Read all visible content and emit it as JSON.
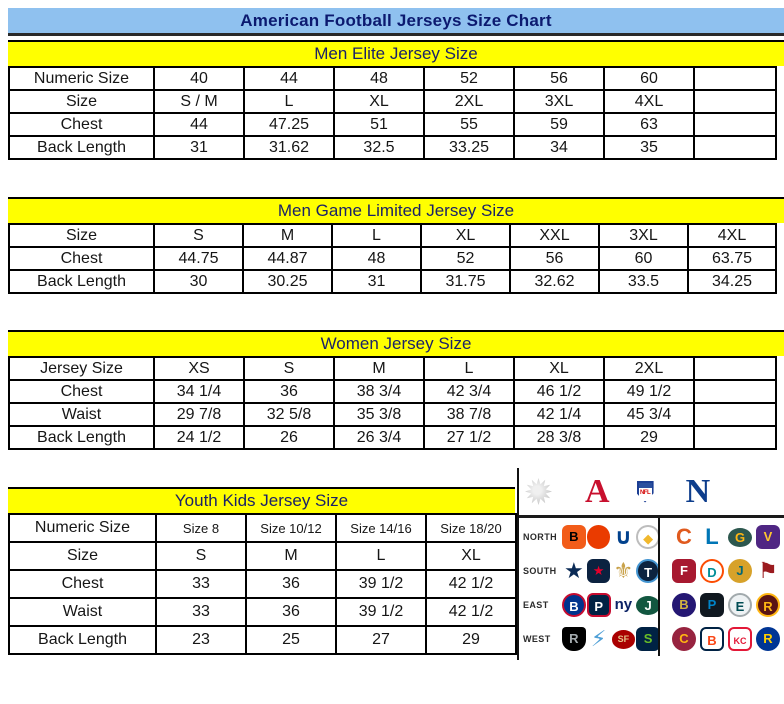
{
  "title_bar": {
    "title": "American Football Jerseys Size Chart"
  },
  "colors": {
    "title_bg": "#8fc1ef",
    "band_bg": "#ffff00",
    "heading_text": "#0c1a70",
    "table_text": "#161616",
    "afc_red": "#c8102e",
    "nfc_blue": "#0d3d8c"
  },
  "tables": {
    "men_elite": {
      "header": "Men Elite Jersey Size",
      "rows": [
        [
          "Numeric Size",
          "40",
          "44",
          "48",
          "52",
          "56",
          "60",
          ""
        ],
        [
          "Size",
          "S / M",
          "L",
          "XL",
          "2XL",
          "3XL",
          "4XL",
          ""
        ],
        [
          "Chest",
          "44",
          "47.25",
          "51",
          "55",
          "59",
          "63",
          ""
        ],
        [
          "Back Length",
          "31",
          "31.62",
          "32.5",
          "33.25",
          "34",
          "35",
          ""
        ]
      ]
    },
    "men_game": {
      "header": "Men Game Limited Jersey Size",
      "rows": [
        [
          "Size",
          "S",
          "M",
          "L",
          "XL",
          "XXL",
          "3XL",
          "4XL"
        ],
        [
          "Chest",
          "44.75",
          "44.87",
          "48",
          "52",
          "56",
          "60",
          "63.75"
        ],
        [
          "Back Length",
          "30",
          "30.25",
          "31",
          "31.75",
          "32.62",
          "33.5",
          "34.25"
        ]
      ]
    },
    "women": {
      "header": "Women Jersey Size",
      "rows": [
        [
          "Jersey Size",
          "XS",
          "S",
          "M",
          "L",
          "XL",
          "2XL",
          ""
        ],
        [
          "Chest",
          "34 1/4",
          "36",
          "38 3/4",
          "42 3/4",
          "46 1/2",
          "49 1/2",
          ""
        ],
        [
          "Waist",
          "29 7/8",
          "32 5/8",
          "35 3/8",
          "38 7/8",
          "42 1/4",
          "45 3/4",
          ""
        ],
        [
          "Back Length",
          "24 1/2",
          "26",
          "26 3/4",
          "27 1/2",
          "28 3/8",
          "29",
          ""
        ]
      ]
    },
    "youth": {
      "header": "Youth Kids Jersey Size",
      "rows": [
        [
          "Numeric Size",
          "Size 8",
          "Size 10/12",
          "Size 14/16",
          "Size 18/20"
        ],
        [
          "Size",
          "S",
          "M",
          "L",
          "XL"
        ],
        [
          "Chest",
          "33",
          "36",
          "39 1/2",
          "42 1/2"
        ],
        [
          "Waist",
          "33",
          "36",
          "39 1/2",
          "42 1/2"
        ],
        [
          "Back Length",
          "23",
          "25",
          "27",
          "29"
        ]
      ]
    }
  },
  "divisions_panel": {
    "afc_letter": "A",
    "nfc_letter": "N",
    "nfl_label": "NFL",
    "rows": [
      {
        "label": "NORTH",
        "afc": [
          {
            "name": "bengals",
            "glyph": "B",
            "fg": "#000000",
            "bg": "#f25c19",
            "shape": "round"
          },
          {
            "name": "browns",
            "glyph": "",
            "fg": "#ffffff",
            "bg": "#ea3b00",
            "shape": "circle"
          },
          {
            "name": "colts",
            "glyph": "∪",
            "fg": "#01418d",
            "kind": "glyph"
          },
          {
            "name": "steelers",
            "glyph": "◆",
            "fg": "#f1b82d",
            "bg": "#ffffff",
            "shape": "circle",
            "border": "#bdbdbd"
          }
        ],
        "nfc": [
          {
            "name": "bears",
            "glyph": "C",
            "fg": "#e05a1e",
            "kind": "glyph"
          },
          {
            "name": "lions",
            "glyph": "L",
            "fg": "#0076b6",
            "kind": "glyph"
          },
          {
            "name": "packers",
            "glyph": "G",
            "fg": "#ffb612",
            "bg": "#2c574e",
            "shape": "oval"
          },
          {
            "name": "vikings",
            "glyph": "V",
            "fg": "#ffc62f",
            "bg": "#4f2683",
            "shape": "round"
          }
        ]
      },
      {
        "label": "SOUTH",
        "afc": [
          {
            "name": "cowboys",
            "glyph": "★",
            "fg": "#0a2a55",
            "kind": "glyph"
          },
          {
            "name": "texans",
            "glyph": "★",
            "fg": "#e4002b",
            "bg": "#0b2240",
            "shape": "round"
          },
          {
            "name": "saints",
            "glyph": "⚜",
            "fg": "#c9a24b",
            "kind": "glyph"
          },
          {
            "name": "titans",
            "glyph": "T",
            "fg": "#ffffff",
            "bg": "#0c2340",
            "shape": "circle",
            "border": "#4495d1"
          }
        ],
        "nfc": [
          {
            "name": "falcons",
            "glyph": "F",
            "fg": "#ffffff",
            "bg": "#a71930",
            "shape": "round"
          },
          {
            "name": "dolphins",
            "glyph": "D",
            "fg": "#008e97",
            "bg": "#ffffff",
            "shape": "circle",
            "border": "#fc4c02"
          },
          {
            "name": "jaguars",
            "glyph": "J",
            "fg": "#006778",
            "bg": "#d7a22a",
            "shape": "circle"
          },
          {
            "name": "buccaneers",
            "glyph": "⚑",
            "fg": "#9b1b1f",
            "kind": "glyph"
          }
        ]
      },
      {
        "label": "EAST",
        "afc": [
          {
            "name": "bills",
            "glyph": "B",
            "fg": "#ffffff",
            "bg": "#00338d",
            "shape": "circle",
            "border": "#c60c30"
          },
          {
            "name": "patriots",
            "glyph": "P",
            "fg": "#ffffff",
            "bg": "#002244",
            "shape": "round",
            "border": "#c60c30"
          },
          {
            "name": "giants",
            "glyph": "ny",
            "fg": "#0b2265",
            "kind": "glyph"
          },
          {
            "name": "jets",
            "glyph": "J",
            "fg": "#ffffff",
            "bg": "#125740",
            "shape": "oval"
          }
        ],
        "nfc": [
          {
            "name": "ravens",
            "glyph": "B",
            "fg": "#d0b240",
            "bg": "#241773",
            "shape": "circle"
          },
          {
            "name": "panthers",
            "glyph": "P",
            "fg": "#0085ca",
            "bg": "#101820",
            "shape": "round"
          },
          {
            "name": "eagles",
            "glyph": "E",
            "fg": "#004c54",
            "bg": "#eef2f4",
            "shape": "circle",
            "border": "#a2aaad"
          },
          {
            "name": "redskins",
            "glyph": "R",
            "fg": "#ffb612",
            "bg": "#5a1414",
            "shape": "circle",
            "border": "#ffb612"
          }
        ]
      },
      {
        "label": "WEST",
        "afc": [
          {
            "name": "raiders",
            "glyph": "R",
            "fg": "#a5acaf",
            "bg": "#000000",
            "shape": "shield"
          },
          {
            "name": "chargers",
            "glyph": "⚡",
            "fg": "#4e9fd6",
            "kind": "glyph"
          },
          {
            "name": "49ers",
            "glyph": "SF",
            "fg": "#e5c48a",
            "bg": "#aa0000",
            "shape": "oval"
          },
          {
            "name": "seahawks",
            "glyph": "S",
            "fg": "#69be28",
            "bg": "#002244",
            "shape": "round"
          }
        ],
        "nfc": [
          {
            "name": "cardinals",
            "glyph": "C",
            "fg": "#ffb612",
            "bg": "#97233f",
            "shape": "circle"
          },
          {
            "name": "broncos",
            "glyph": "B",
            "fg": "#fa4616",
            "bg": "#ffffff",
            "shape": "round",
            "border": "#002244"
          },
          {
            "name": "chiefs",
            "glyph": "KC",
            "fg": "#e31837",
            "bg": "#ffffff",
            "shape": "round",
            "border": "#e31837"
          },
          {
            "name": "rams",
            "glyph": "R",
            "fg": "#ffd100",
            "bg": "#003594",
            "shape": "circle"
          }
        ]
      }
    ]
  }
}
